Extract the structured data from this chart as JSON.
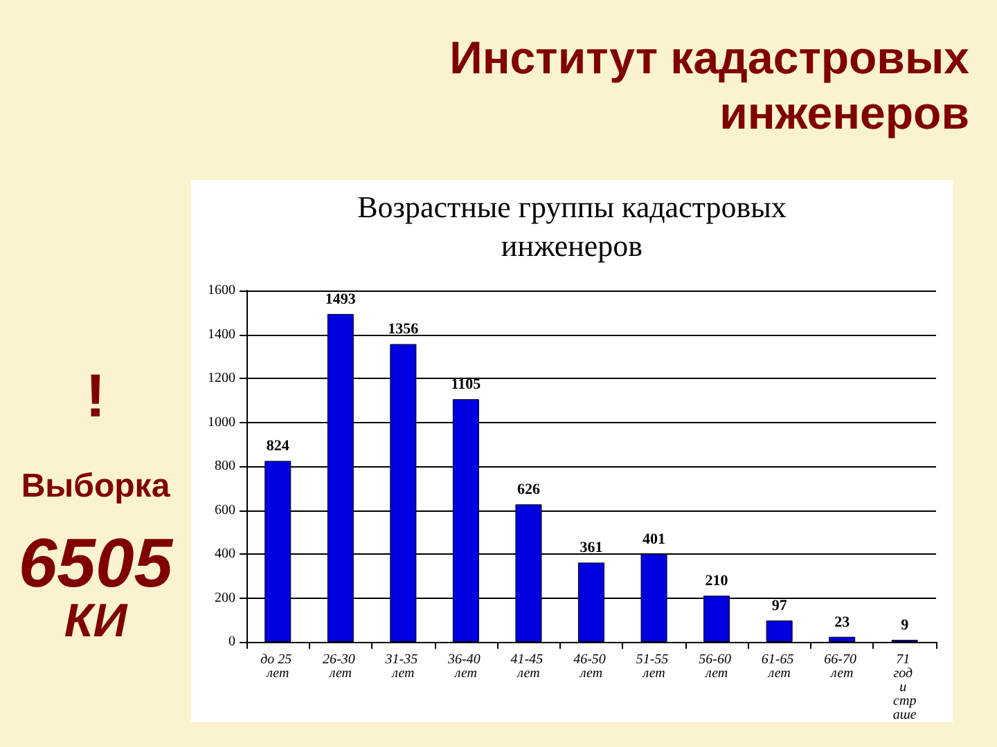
{
  "chart_data": {
    "type": "bar",
    "title": "Институт кадастровых инженеров",
    "subtitle": "Возрастные группы кадастровых инженеров",
    "categories": [
      "до 25 лет",
      "26-30 лет",
      "31-35 лет",
      "36-40 лет",
      "41-45 лет",
      "46-50 лет",
      "51-55 лет",
      "56-60 лет",
      "61-65 лет",
      "66-70 лет",
      "71 год и страше"
    ],
    "values": [
      824,
      1493,
      1356,
      1105,
      626,
      361,
      401,
      210,
      97,
      23,
      9
    ],
    "color": "#0000e0",
    "ylim": [
      0,
      1600
    ],
    "yticks": [
      0,
      200,
      400,
      600,
      800,
      1000,
      1200,
      1400,
      1600
    ],
    "grid": "y",
    "data_labels": true,
    "annotations": [
      "!",
      "Выборка",
      "6505",
      "КИ"
    ]
  }
}
